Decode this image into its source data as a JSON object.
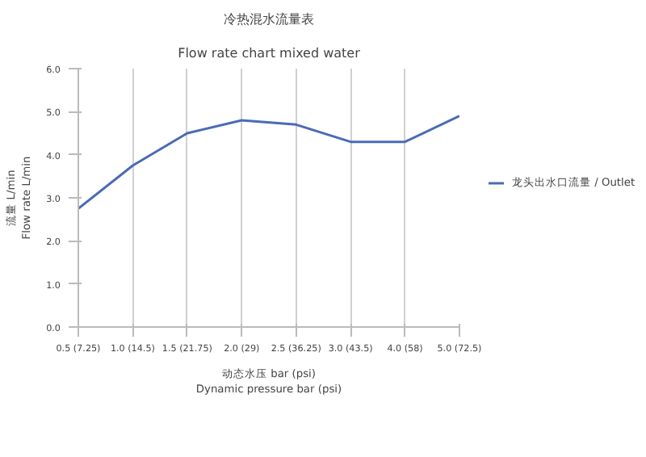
{
  "chart_data": {
    "type": "line",
    "title": "冷热混水流量表",
    "subtitle": "Flow rate chart mixed water",
    "xlabel": "动态水压 bar (psi)\nDynamic pressure bar (psi)",
    "ylabel": "流量 L/min\nFlow rate L/min",
    "categories": [
      "0.5 (7.25)",
      "1.0 (14.5)",
      "1.5 (21.75)",
      "2.0 (29)",
      "2.5 (36.25)",
      "3.0 (43.5)",
      "4.0 (58)",
      "5.0 (72.5)"
    ],
    "series": [
      {
        "name": "龙头出水口流量 / Outlet",
        "color": "#4a6bb5",
        "values": [
          2.75,
          3.75,
          4.5,
          4.8,
          4.7,
          4.3,
          4.3,
          4.9
        ]
      }
    ],
    "ylim": [
      0,
      6
    ],
    "yticks": [
      {
        "value": 0,
        "label": "0.0"
      },
      {
        "value": 1,
        "label": "1.0"
      },
      {
        "value": 2,
        "label": "2.0"
      },
      {
        "value": 3,
        "label": "3.0"
      },
      {
        "value": 4,
        "label": "4.0"
      },
      {
        "value": 5,
        "label": "5.0"
      },
      {
        "value": 6,
        "label": "6.0"
      }
    ],
    "grid": "x",
    "legend": "right",
    "marker": "none",
    "line_style": "solid"
  }
}
